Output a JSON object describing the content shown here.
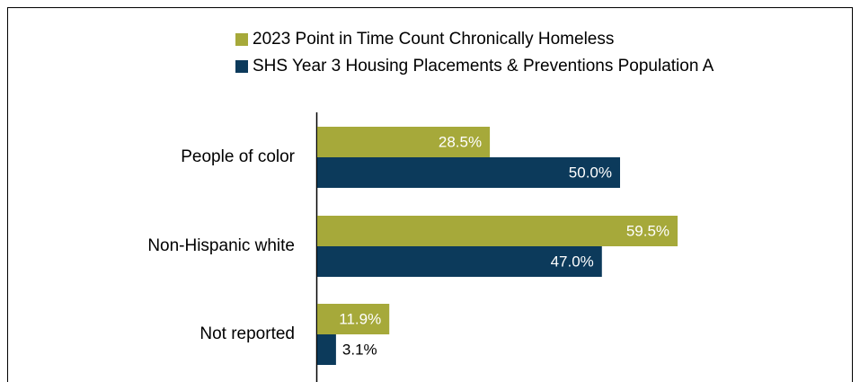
{
  "chart_data": {
    "type": "bar",
    "orientation": "horizontal",
    "categories": [
      "People of color",
      "Non-Hispanic white",
      "Not reported"
    ],
    "series": [
      {
        "name": "2023 Point in Time Count Chronically Homeless",
        "color": "#a6a93a",
        "values": [
          28.5,
          59.5,
          11.9
        ],
        "value_labels": [
          "28.5%",
          "59.5%",
          "11.9%"
        ]
      },
      {
        "name": "SHS Year 3 Housing Placements & Preventions Population A",
        "color": "#0c3a5b",
        "values": [
          50.0,
          47.0,
          3.1
        ],
        "value_labels": [
          "50.0%",
          "47.0%",
          "3.1%"
        ]
      }
    ],
    "legend": "top"
  }
}
